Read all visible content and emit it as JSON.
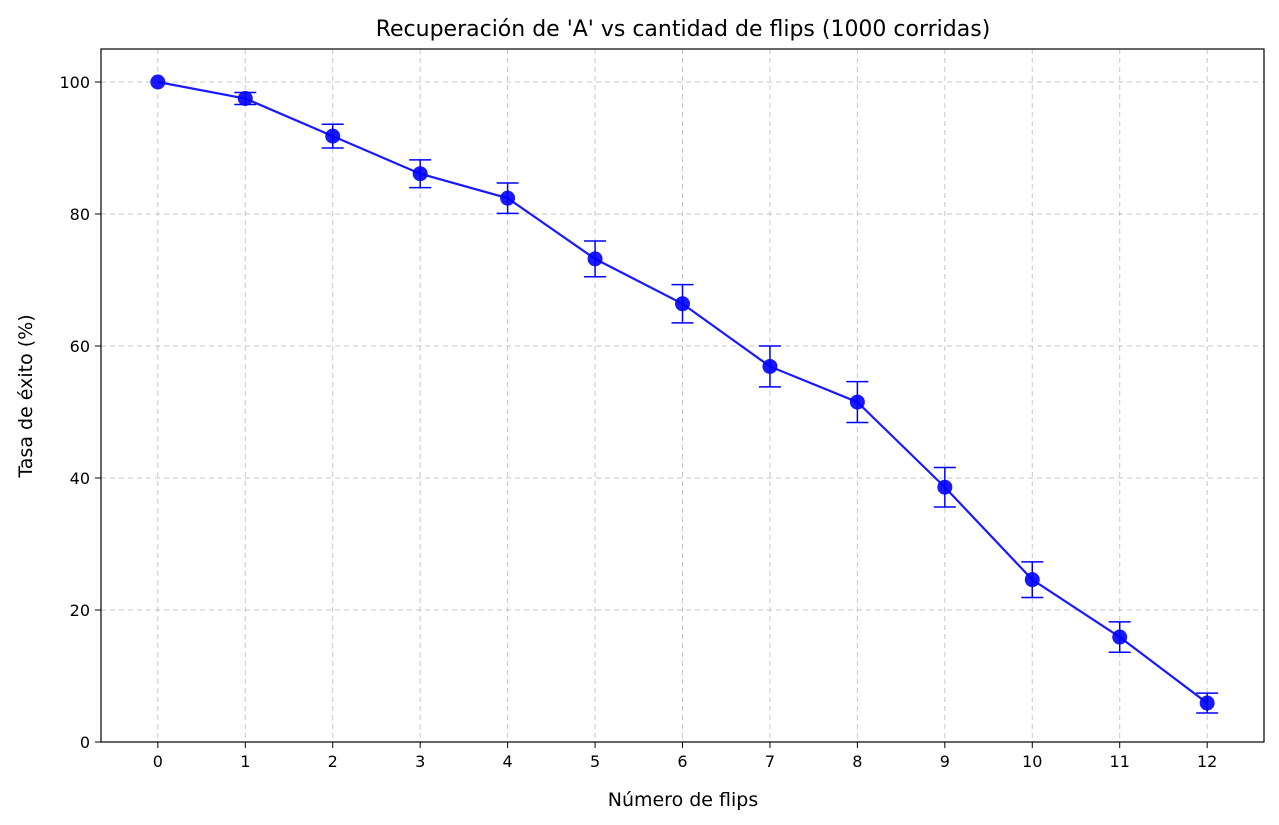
{
  "chart_data": {
    "type": "line",
    "title": "Recuperación de 'A' vs cantidad de flips (1000 corridas)",
    "xlabel": "Número de flips",
    "ylabel": "Tasa de éxito (%)",
    "x": [
      0,
      1,
      2,
      3,
      4,
      5,
      6,
      7,
      8,
      9,
      10,
      11,
      12
    ],
    "x_ticks": [
      "0",
      "1",
      "2",
      "3",
      "4",
      "5",
      "6",
      "7",
      "8",
      "9",
      "10",
      "11",
      "12"
    ],
    "y_ticks": [
      "0",
      "20",
      "40",
      "60",
      "80",
      "100"
    ],
    "xlim": [
      -0.65,
      12.65
    ],
    "ylim": [
      0,
      105
    ],
    "grid": true,
    "series": [
      {
        "values": [
          100.0,
          97.5,
          91.8,
          86.1,
          82.4,
          73.2,
          66.4,
          56.9,
          51.5,
          38.6,
          24.6,
          15.9,
          5.9
        ],
        "errors": [
          0.0,
          0.9,
          1.8,
          2.1,
          2.3,
          2.7,
          2.9,
          3.1,
          3.1,
          3.0,
          2.7,
          2.3,
          1.5
        ],
        "color": "#0000ff"
      }
    ]
  }
}
